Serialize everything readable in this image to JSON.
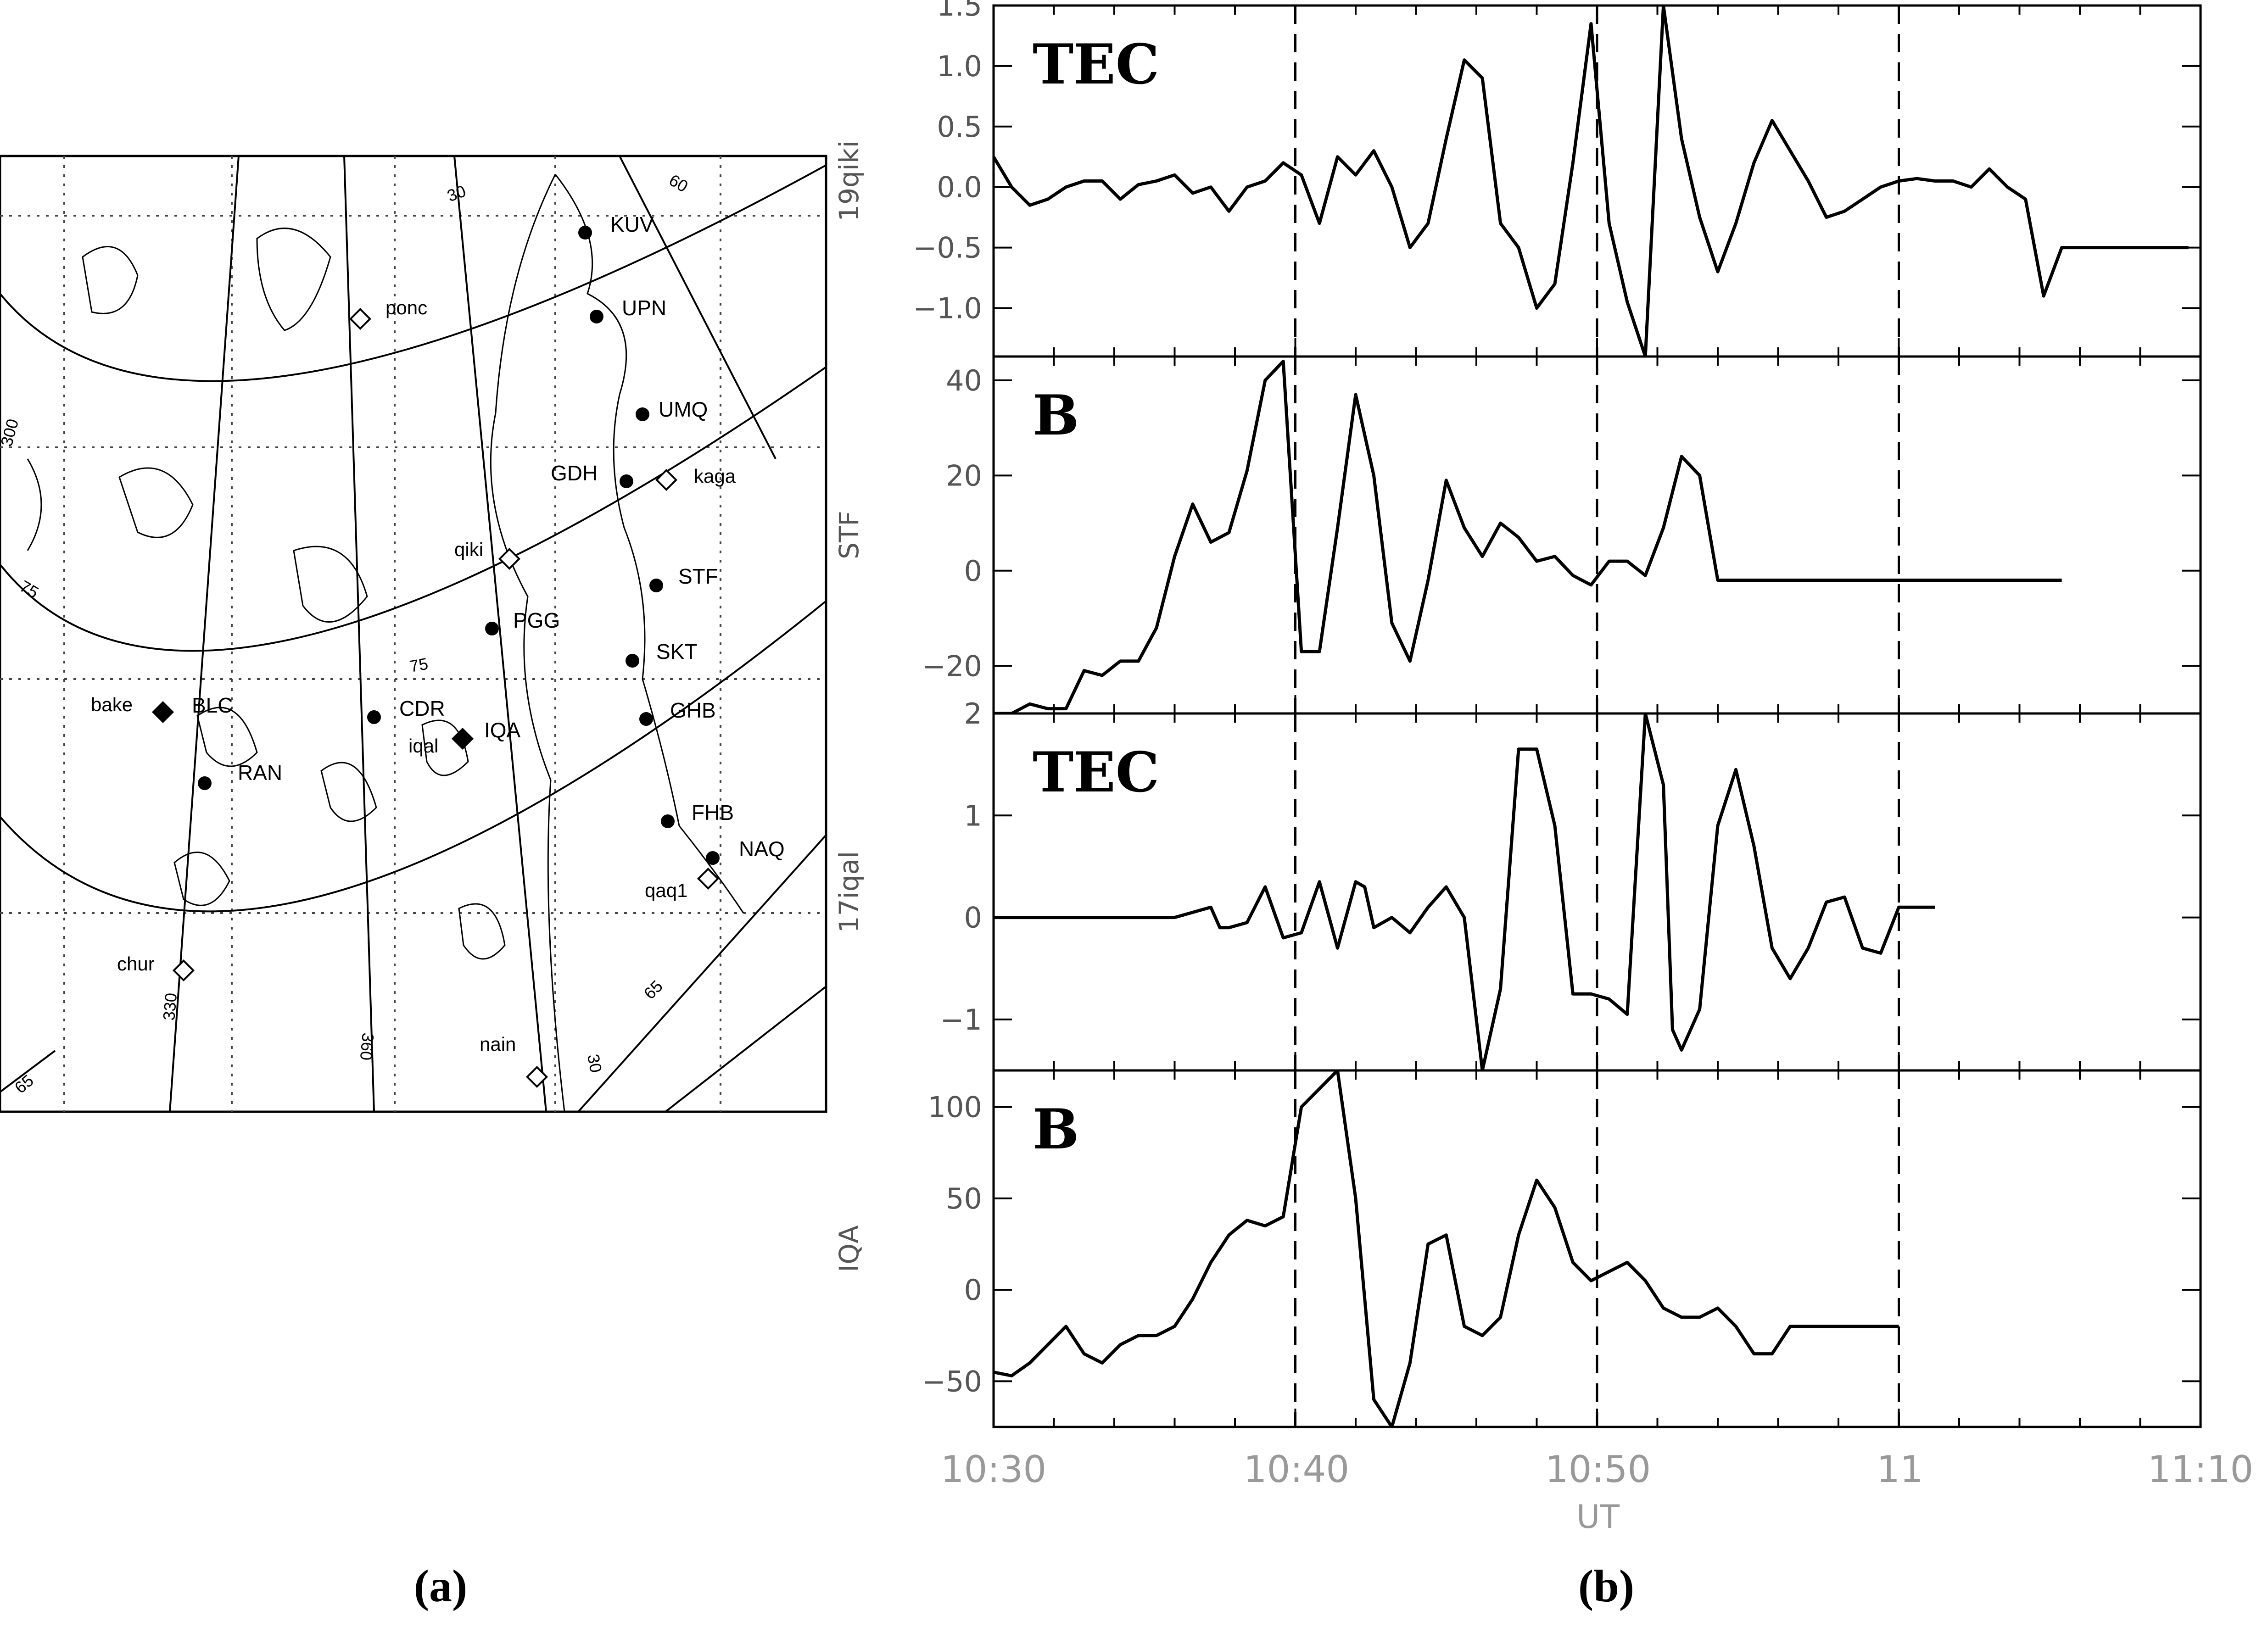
{
  "figure": {
    "caption_a": "(a)",
    "caption_b": "(b)"
  },
  "map": {
    "stations": [
      {
        "code": "KUV",
        "marker": "dot"
      },
      {
        "code": "UPN",
        "marker": "dot"
      },
      {
        "code": "UMQ",
        "marker": "dot"
      },
      {
        "code": "GDH",
        "marker": "dot"
      },
      {
        "code": "STF",
        "marker": "dot"
      },
      {
        "code": "PGG",
        "marker": "dot"
      },
      {
        "code": "SKT",
        "marker": "dot"
      },
      {
        "code": "GHB",
        "marker": "dot"
      },
      {
        "code": "CDR",
        "marker": "dot"
      },
      {
        "code": "BLC",
        "marker": "dot"
      },
      {
        "code": "IQA",
        "marker": "dot"
      },
      {
        "code": "RAN",
        "marker": "dot"
      },
      {
        "code": "FHB",
        "marker": "dot"
      },
      {
        "code": "NAQ",
        "marker": "dot"
      }
    ],
    "gps_receivers": [
      "ponc",
      "kaga",
      "qiki",
      "bake",
      "iqal",
      "qaq1",
      "chur",
      "nain"
    ],
    "contour_labels": [
      "30",
      "60",
      "300",
      "75",
      "75",
      "330",
      "360",
      "30",
      "65",
      "65"
    ]
  },
  "chart_data": [
    {
      "type": "line",
      "panel_label": "TEC",
      "ylabel": "19qiki",
      "ylim": [
        -1.4,
        1.5
      ],
      "yticks": [
        1.5,
        1.0,
        0.5,
        0.0,
        -0.5,
        -1.0
      ],
      "ytick_labels": [
        "1.5",
        "1.0",
        "0.5",
        "0.0",
        "−0.5",
        "−1.0"
      ],
      "x": [
        10.5,
        10.51,
        10.52,
        10.53,
        10.54,
        10.55,
        10.56,
        10.57,
        10.58,
        10.59,
        10.6,
        10.61,
        10.62,
        10.63,
        10.64,
        10.65,
        10.66,
        10.67,
        10.68,
        10.69,
        10.7,
        10.71,
        10.72,
        10.73,
        10.74,
        10.75,
        10.76,
        10.77,
        10.78,
        10.79,
        10.8,
        10.81,
        10.82,
        10.83,
        10.84,
        10.85,
        10.86,
        10.87,
        10.88,
        10.89,
        10.9,
        10.91,
        10.92,
        10.93,
        10.94,
        10.95,
        10.96,
        10.97,
        10.98,
        10.99,
        11.0,
        11.01,
        11.02,
        11.03,
        11.04,
        11.05,
        11.06,
        11.07,
        11.08,
        11.09,
        11.1,
        11.11,
        11.12,
        11.13,
        11.14,
        11.15,
        11.16
      ],
      "values": [
        0.25,
        0.0,
        -0.15,
        -0.1,
        0.0,
        0.05,
        0.05,
        -0.1,
        0.02,
        0.05,
        0.1,
        -0.05,
        0.0,
        -0.2,
        0.0,
        0.05,
        0.2,
        0.1,
        -0.3,
        0.25,
        0.1,
        0.3,
        0.0,
        -0.5,
        -0.3,
        0.4,
        1.05,
        0.9,
        -0.3,
        -0.5,
        -1.0,
        -0.8,
        0.2,
        1.35,
        -0.3,
        -0.95,
        -1.4,
        1.5,
        0.4,
        -0.25,
        -0.7,
        -0.3,
        0.2,
        0.55,
        0.3,
        0.05,
        -0.25,
        -0.2,
        -0.1,
        0.0,
        0.05,
        0.07,
        0.05,
        0.05,
        0.0,
        0.15,
        0.0,
        -0.1,
        -0.9,
        -0.5,
        -0.5,
        -0.5,
        -0.5,
        -0.5,
        -0.5,
        -0.5,
        -0.5
      ]
    },
    {
      "type": "line",
      "panel_label": "B",
      "ylabel": "STF",
      "ylim": [
        -30,
        45
      ],
      "yticks": [
        40,
        20,
        0,
        -20
      ],
      "ytick_labels": [
        "40",
        "20",
        "0",
        "−20"
      ],
      "x": [
        10.5,
        10.51,
        10.52,
        10.53,
        10.54,
        10.55,
        10.56,
        10.57,
        10.58,
        10.59,
        10.6,
        10.61,
        10.62,
        10.63,
        10.64,
        10.65,
        10.66,
        10.67,
        10.68,
        10.69,
        10.7,
        10.71,
        10.72,
        10.73,
        10.74,
        10.75,
        10.76,
        10.77,
        10.78,
        10.79,
        10.8,
        10.81,
        10.82,
        10.83,
        10.84,
        10.85,
        10.86,
        10.87,
        10.88,
        10.89,
        10.9,
        10.91,
        10.92,
        10.93,
        10.94,
        10.95,
        10.96,
        10.97,
        10.98,
        10.99,
        11.0,
        11.01,
        11.02,
        11.03,
        11.04,
        11.05,
        11.06,
        11.07,
        11.08,
        11.09
      ],
      "values": [
        -30,
        -30,
        -28,
        -29,
        -29,
        -21,
        -22,
        -19,
        -19,
        -12,
        3,
        14,
        6,
        8,
        21,
        40,
        44,
        -17,
        -17,
        9,
        37,
        20,
        -11,
        -19,
        -2,
        19,
        9,
        3,
        10,
        7,
        2,
        3,
        -1,
        -3,
        2,
        2,
        -1,
        9,
        24,
        20,
        -2,
        -2,
        -2,
        -2,
        -2,
        -2,
        -2,
        -2,
        -2,
        -2,
        -2,
        -2,
        -2,
        -2,
        -2,
        -2,
        -2,
        -2,
        -2,
        -2
      ]
    },
    {
      "type": "line",
      "panel_label": "TEC",
      "ylabel": "17iqal",
      "ylim": [
        -1.5,
        2
      ],
      "yticks": [
        2,
        1,
        0,
        -1
      ],
      "ytick_labels": [
        "2",
        "1",
        "0",
        "−1"
      ],
      "x": [
        10.5,
        10.55,
        10.6,
        10.62,
        10.625,
        10.63,
        10.64,
        10.65,
        10.66,
        10.67,
        10.68,
        10.69,
        10.7,
        10.705,
        10.71,
        10.72,
        10.73,
        10.74,
        10.75,
        10.76,
        10.77,
        10.78,
        10.79,
        10.8,
        10.81,
        10.82,
        10.83,
        10.84,
        10.85,
        10.86,
        10.87,
        10.875,
        10.88,
        10.89,
        10.9,
        10.91,
        10.92,
        10.93,
        10.94,
        10.95,
        10.96,
        10.97,
        10.98,
        10.99,
        11.0,
        11.01,
        11.02
      ],
      "values": [
        0,
        0,
        0,
        0.1,
        -0.1,
        -0.1,
        -0.05,
        0.3,
        -0.2,
        -0.15,
        0.35,
        -0.3,
        0.35,
        0.3,
        -0.1,
        0.0,
        -0.15,
        0.1,
        0.3,
        0.0,
        -1.5,
        -0.7,
        1.65,
        1.65,
        0.9,
        -0.75,
        -0.75,
        -0.8,
        -0.95,
        2.0,
        1.3,
        -1.1,
        -1.3,
        -0.9,
        0.9,
        1.45,
        0.7,
        -0.3,
        -0.6,
        -0.3,
        0.15,
        0.2,
        -0.3,
        -0.35,
        0.1,
        0.1,
        0.1
      ]
    },
    {
      "type": "line",
      "panel_label": "B",
      "ylabel": "IQA",
      "ylim": [
        -75,
        120
      ],
      "yticks": [
        100,
        50,
        0,
        -50
      ],
      "ytick_labels": [
        "100",
        "50",
        "0",
        "−50"
      ],
      "x": [
        10.5,
        10.51,
        10.52,
        10.53,
        10.54,
        10.55,
        10.56,
        10.57,
        10.58,
        10.59,
        10.6,
        10.61,
        10.62,
        10.63,
        10.64,
        10.65,
        10.66,
        10.67,
        10.68,
        10.69,
        10.7,
        10.71,
        10.72,
        10.73,
        10.74,
        10.75,
        10.76,
        10.77,
        10.78,
        10.79,
        10.8,
        10.81,
        10.82,
        10.83,
        10.84,
        10.85,
        10.86,
        10.87,
        10.88,
        10.89,
        10.9,
        10.91,
        10.92,
        10.93,
        10.94,
        10.95,
        10.96,
        10.97,
        10.98,
        10.99,
        11.0
      ],
      "values": [
        -45,
        -47,
        -40,
        -30,
        -20,
        -35,
        -40,
        -30,
        -25,
        -25,
        -20,
        -5,
        15,
        30,
        38,
        35,
        40,
        100,
        110,
        120,
        50,
        -60,
        -75,
        -40,
        25,
        30,
        -20,
        -25,
        -15,
        30,
        60,
        45,
        15,
        5,
        10,
        15,
        5,
        -10,
        -15,
        -15,
        -10,
        -20,
        -35,
        -35,
        -20,
        -20,
        -20,
        -20,
        -20,
        -20,
        -20
      ]
    }
  ],
  "x_axis": {
    "xlabel": "UT",
    "tick_labels": [
      "10:30",
      "10:40",
      "10:50",
      "11",
      "11:10"
    ]
  }
}
